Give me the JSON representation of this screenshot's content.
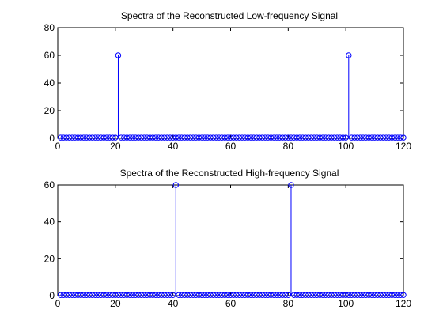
{
  "chart_data": [
    {
      "type": "stem",
      "title": "Spectra of the Reconstructed Low-frequency Signal",
      "xlabel": "",
      "ylabel": "",
      "xlim": [
        0,
        120
      ],
      "ylim": [
        0,
        80
      ],
      "xticks": [
        0,
        20,
        40,
        60,
        80,
        100,
        120
      ],
      "yticks": [
        0,
        20,
        40,
        60,
        80
      ],
      "grid": false,
      "color": "#0000ff",
      "x_range": [
        1,
        120
      ],
      "baseline_value": 0.5,
      "peaks": [
        {
          "x": 21,
          "y": 60
        },
        {
          "x": 101,
          "y": 60
        }
      ]
    },
    {
      "type": "stem",
      "title": "Spectra of the Reconstructed High-frequency Signal",
      "xlabel": "",
      "ylabel": "",
      "xlim": [
        0,
        120
      ],
      "ylim": [
        0,
        60
      ],
      "xticks": [
        0,
        20,
        40,
        60,
        80,
        100,
        120
      ],
      "yticks": [
        0,
        20,
        40,
        60
      ],
      "grid": false,
      "color": "#0000ff",
      "x_range": [
        1,
        120
      ],
      "baseline_value": 0.3,
      "peaks": [
        {
          "x": 41,
          "y": 60
        },
        {
          "x": 81,
          "y": 60
        }
      ]
    }
  ]
}
